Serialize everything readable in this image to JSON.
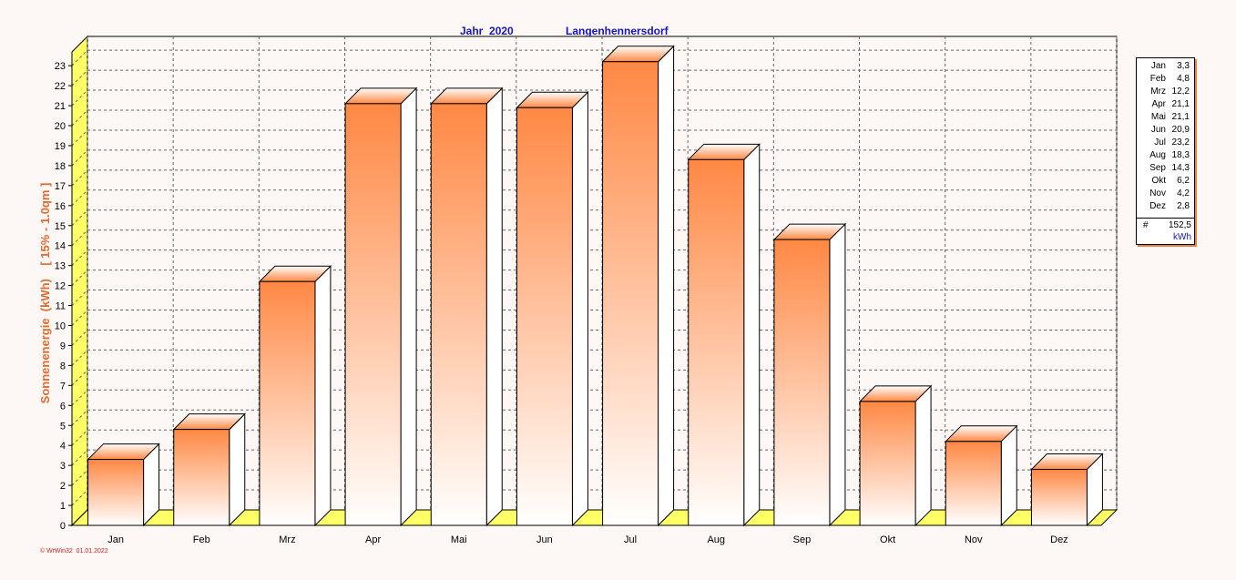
{
  "header": {
    "year_label": "Jahr  2020",
    "location": "Langenhennersdorf"
  },
  "footer": {
    "stamp": "© WrWin32  01.01.2022"
  },
  "legend": {
    "rows": [
      {
        "month": "Jan",
        "value": "3,3"
      },
      {
        "month": "Feb",
        "value": "4,8"
      },
      {
        "month": "Mrz",
        "value": "12,2"
      },
      {
        "month": "Apr",
        "value": "21,1"
      },
      {
        "month": "Mai",
        "value": "21,1"
      },
      {
        "month": "Jun",
        "value": "20,9"
      },
      {
        "month": "Jul",
        "value": "23,2"
      },
      {
        "month": "Aug",
        "value": "18,3"
      },
      {
        "month": "Sep",
        "value": "14,3"
      },
      {
        "month": "Okt",
        "value": "6,2"
      },
      {
        "month": "Nov",
        "value": "4,2"
      },
      {
        "month": "Dez",
        "value": "2,8"
      }
    ],
    "total_symbol": "#",
    "total": "152,5",
    "unit": "kWh"
  },
  "chart_data": {
    "type": "bar",
    "title": "",
    "xlabel": "",
    "ylabel": "Sonnenenergie  (kWh)    [ 15% - 1.0qm ]",
    "categories": [
      "Jan",
      "Feb",
      "Mrz",
      "Apr",
      "Mai",
      "Jun",
      "Jul",
      "Aug",
      "Sep",
      "Okt",
      "Nov",
      "Dez"
    ],
    "values": [
      3.3,
      4.8,
      12.2,
      21.1,
      21.1,
      20.9,
      23.2,
      18.3,
      14.3,
      6.2,
      4.2,
      2.8
    ],
    "ylim": [
      0,
      23
    ],
    "yticks": [
      "0",
      "1",
      "2",
      "3",
      "4",
      "5",
      "6",
      "7",
      "8",
      "9",
      "10",
      "11",
      "12",
      "13",
      "14",
      "15",
      "16",
      "17",
      "18",
      "19",
      "20",
      "21",
      "22",
      "23"
    ],
    "grid": true,
    "three_d": true,
    "legend_position": "right",
    "colors": {
      "bar_top": "#ff8844",
      "bar_bottom": "#ffffff",
      "floor": "#ffff66",
      "title": "#1414c8",
      "ylabel": "#e06a30"
    }
  }
}
